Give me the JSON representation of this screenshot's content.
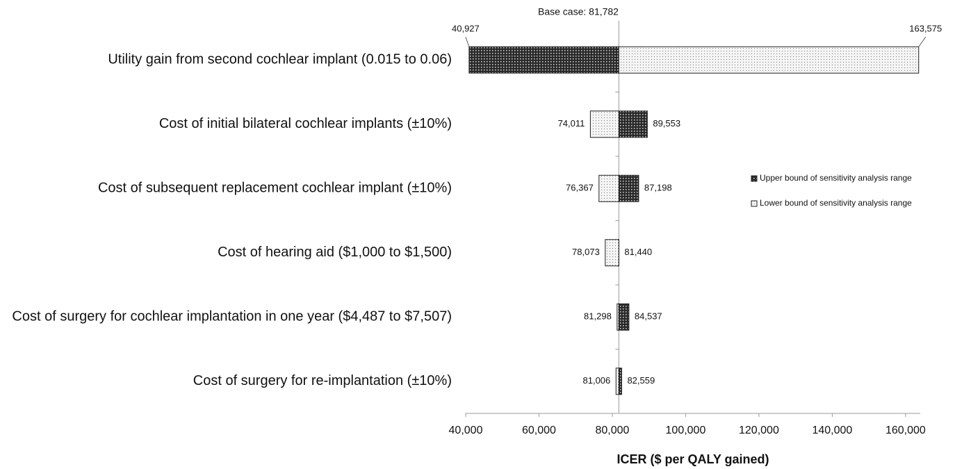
{
  "chart_data": {
    "type": "tornado",
    "x_label": "ICER ($ per QALY gained)",
    "base_label": "Base case: 81,782",
    "base_value": 81782,
    "categories": [
      "Utility gain from second cochlear implant (0.015 to 0.06)",
      "Cost of initial bilateral cochlear implants (±10%)",
      "Cost of subsequent replacement cochlear implant (±10%)",
      "Cost of hearing aid ($1,000 to $1,500)",
      "Cost of surgery for cochlear implantation in one year ($4,487 to $7,507)",
      "Cost of surgery for re-implantation (±10%)"
    ],
    "series": [
      {
        "name": "Upper bound of sensitivity analysis range",
        "color": "#2a2a2a",
        "values": [
          40927,
          89553,
          87198,
          81440,
          84537,
          82559
        ],
        "value_labels": [
          "40,927",
          "89,553",
          "87,198",
          "81,440",
          "84,537",
          "82,559"
        ]
      },
      {
        "name": "Lower bound of sensitivity analysis range",
        "color": "#f4f4f4",
        "values": [
          163575,
          74011,
          76367,
          78073,
          81298,
          81006
        ],
        "value_labels": [
          "163,575",
          "74,011",
          "76,367",
          "78,073",
          "81,298",
          "81,006"
        ]
      }
    ],
    "xlim": [
      40000,
      164000
    ],
    "xticks": [
      {
        "value": 40000,
        "label": "40,000"
      },
      {
        "value": 60000,
        "label": "60,000"
      },
      {
        "value": 80000,
        "label": "80,000"
      },
      {
        "value": 100000,
        "label": "100,000"
      },
      {
        "value": 120000,
        "label": "120,000"
      },
      {
        "value": 140000,
        "label": "140,000"
      },
      {
        "value": 160000,
        "label": "160,000"
      }
    ],
    "legend": "right"
  }
}
